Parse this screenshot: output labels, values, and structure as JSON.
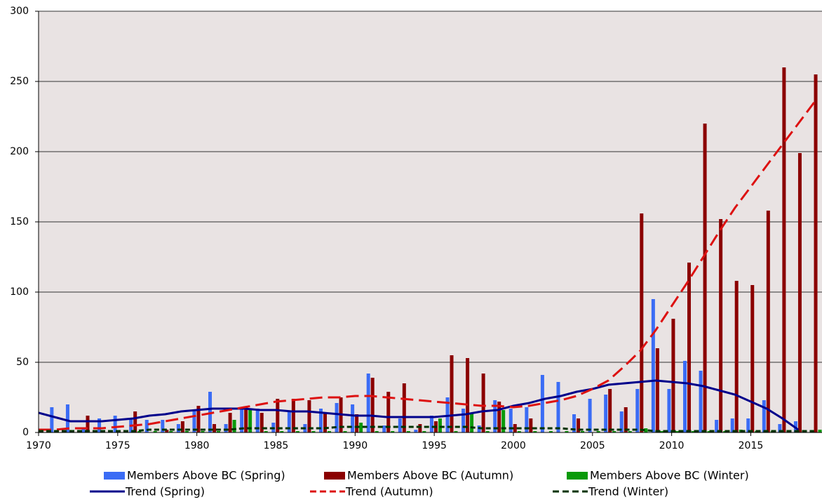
{
  "chart_data": {
    "type": "bar",
    "x": [
      1970,
      1971,
      1972,
      1973,
      1974,
      1975,
      1976,
      1977,
      1978,
      1979,
      1980,
      1981,
      1982,
      1983,
      1984,
      1985,
      1986,
      1987,
      1988,
      1989,
      1990,
      1991,
      1992,
      1993,
      1994,
      1995,
      1996,
      1997,
      1998,
      1999,
      2000,
      2001,
      2002,
      2003,
      2004,
      2005,
      2006,
      2007,
      2008,
      2009,
      2010,
      2011,
      2012,
      2013,
      2014,
      2015,
      2016,
      2017,
      2018,
      2019
    ],
    "xlim": [
      1970,
      2019.5
    ],
    "xticks": [
      1970,
      1975,
      1980,
      1985,
      1990,
      1995,
      2000,
      2005,
      2010,
      2015
    ],
    "ylim": [
      0,
      300
    ],
    "yticks": [
      0,
      50,
      100,
      150,
      200,
      250,
      300
    ],
    "grid": true,
    "series": [
      {
        "name": "Members Above BC (Spring)",
        "kind": "bar",
        "color": "#3b6cf5",
        "values": [
          0,
          18,
          20,
          3,
          10,
          12,
          10,
          9,
          9,
          6,
          16,
          29,
          6,
          17,
          17,
          7,
          15,
          6,
          17,
          21,
          20,
          42,
          5,
          10,
          2,
          12,
          25,
          17,
          5,
          23,
          17,
          18,
          41,
          36,
          13,
          24,
          27,
          15,
          31,
          95,
          31,
          51,
          44,
          9,
          10,
          10,
          23,
          6,
          8,
          0
        ]
      },
      {
        "name": "Members Above BC (Autumn)",
        "kind": "bar",
        "color": "#8b0000",
        "values": [
          0,
          0,
          0,
          12,
          0,
          0,
          15,
          0,
          2,
          8,
          19,
          6,
          14,
          18,
          14,
          24,
          24,
          23,
          14,
          25,
          13,
          39,
          29,
          35,
          6,
          8,
          55,
          53,
          42,
          22,
          6,
          10,
          0,
          0,
          10,
          0,
          31,
          18,
          156,
          60,
          81,
          121,
          220,
          152,
          108,
          105,
          158,
          260,
          199,
          255
        ]
      },
      {
        "name": "Members Above BC (Winter)",
        "kind": "bar",
        "color": "#0a9a0a",
        "values": [
          0,
          0,
          0,
          0,
          0,
          0,
          1,
          1,
          1,
          1,
          1,
          1,
          9,
          17,
          1,
          1,
          1,
          1,
          1,
          1,
          7,
          1,
          1,
          1,
          1,
          10,
          1,
          14,
          1,
          16,
          1,
          1,
          1,
          1,
          1,
          1,
          1,
          1,
          3,
          1,
          1,
          1,
          1,
          1,
          2,
          1,
          1,
          1,
          1,
          2
        ]
      },
      {
        "name": "Trend (Spring)",
        "kind": "line",
        "color": "#00008b",
        "dash": false,
        "values": [
          14,
          11,
          8,
          8,
          8,
          9,
          10,
          12,
          13,
          15,
          16,
          17,
          17,
          17,
          16,
          16,
          15,
          15,
          14,
          13,
          12,
          12,
          11,
          11,
          11,
          11,
          12,
          13,
          15,
          16,
          19,
          21,
          24,
          26,
          29,
          31,
          34,
          35,
          36,
          37,
          36,
          35,
          33,
          30,
          27,
          22,
          17,
          10,
          2,
          null
        ]
      },
      {
        "name": "Trend (Autumn)",
        "kind": "line",
        "color": "#dd1111",
        "dash": true,
        "values": [
          2,
          2,
          3,
          3,
          3,
          4,
          5,
          6,
          8,
          10,
          12,
          14,
          16,
          18,
          20,
          22,
          23,
          24,
          25,
          25,
          26,
          26,
          25,
          24,
          23,
          22,
          21,
          20,
          19,
          19,
          18,
          19,
          21,
          23,
          26,
          31,
          37,
          47,
          58,
          73,
          90,
          107,
          125,
          143,
          160,
          175,
          190,
          205,
          220,
          235
        ]
      },
      {
        "name": "Trend (Winter)",
        "kind": "line",
        "color": "#003300",
        "dash": true,
        "values": [
          1,
          1,
          1,
          1,
          1,
          1,
          1,
          2,
          2,
          2,
          2,
          2,
          2,
          3,
          3,
          3,
          3,
          3,
          3,
          4,
          4,
          4,
          4,
          4,
          4,
          4,
          4,
          4,
          3,
          3,
          3,
          3,
          3,
          3,
          2,
          2,
          2,
          2,
          2,
          1,
          1,
          1,
          1,
          1,
          1,
          1,
          1,
          1,
          1,
          1
        ]
      }
    ]
  }
}
